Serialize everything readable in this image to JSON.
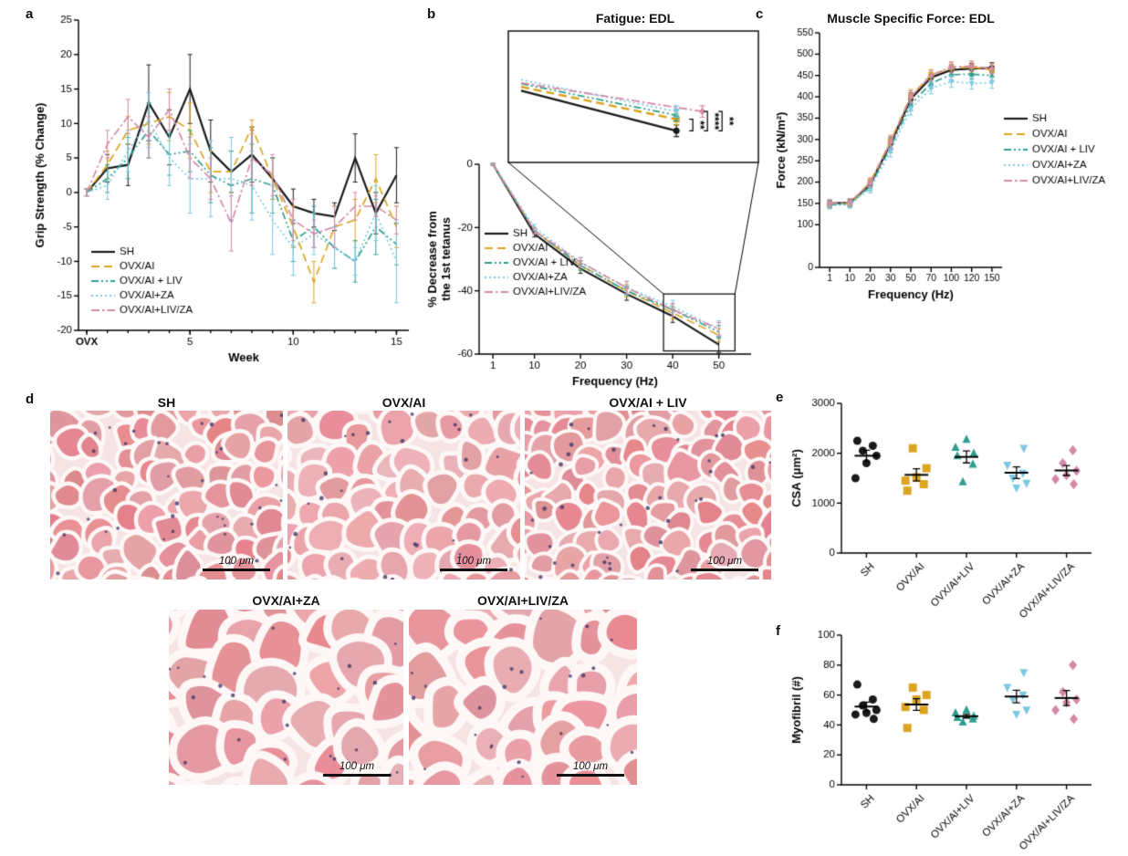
{
  "panel_labels": {
    "a": "a",
    "b": "b",
    "c": "c",
    "d": "d",
    "e": "e",
    "f": "f"
  },
  "groups": [
    {
      "name": "SH",
      "color": "#1a1a1a",
      "dash": "solid",
      "marker": "circle"
    },
    {
      "name": "OVX/AI",
      "color": "#dba520",
      "dash": "dashed",
      "marker": "square"
    },
    {
      "name": "OVX/AI + LIV",
      "color": "#2f9e8e",
      "dash": "dashdotdot",
      "marker": "triangle-up"
    },
    {
      "name": "OVX/AI+ZA",
      "color": "#7cc7e2",
      "dash": "dotted",
      "marker": "triangle-down"
    },
    {
      "name": "OVX/AI+LIV/ZA",
      "color": "#d489a6",
      "dash": "dashdot",
      "marker": "diamond"
    }
  ],
  "chart_data": [
    {
      "id": "a",
      "type": "line",
      "title": "",
      "xlabel": "Week",
      "ylabel": "Grip Strength (% Change)",
      "x": [
        0,
        1,
        2,
        3,
        4,
        5,
        6,
        7,
        8,
        9,
        10,
        11,
        12,
        13,
        14,
        15
      ],
      "xticks": [
        {
          "v": 0,
          "label": "OVX",
          "bold": true
        },
        {
          "v": 5,
          "label": "5"
        },
        {
          "v": 10,
          "label": "10"
        },
        {
          "v": 15,
          "label": "15"
        }
      ],
      "ylim": [
        -20,
        25
      ],
      "yticks": [
        -20,
        -15,
        -10,
        -5,
        0,
        5,
        10,
        15,
        20,
        25
      ],
      "series": [
        {
          "group": 0,
          "values": [
            0,
            3.5,
            4,
            13,
            8,
            15,
            6,
            3,
            5.5,
            2,
            -2,
            -3,
            -3.5,
            5,
            -3,
            2.5
          ],
          "err": [
            0.5,
            2,
            3,
            5.5,
            4,
            5,
            4.5,
            3,
            4,
            3,
            2.5,
            2,
            2,
            3.5,
            3,
            4
          ]
        },
        {
          "group": 1,
          "values": [
            0,
            4,
            9,
            10,
            11,
            9,
            3,
            3,
            9.5,
            2,
            -5,
            -13,
            -5,
            -4,
            2,
            -5
          ],
          "err": [
            0.5,
            2,
            2,
            3,
            3.5,
            4,
            3,
            3,
            1,
            3,
            3,
            3,
            3,
            3,
            3.5,
            3
          ]
        },
        {
          "group": 2,
          "values": [
            0,
            2,
            5,
            9,
            5.5,
            6,
            2.5,
            1,
            2,
            1,
            -7,
            -5,
            -8,
            -10,
            -5,
            -7.5
          ],
          "err": [
            0.5,
            2,
            3,
            4,
            3,
            3,
            4,
            5,
            5,
            4,
            3,
            3,
            3,
            3,
            4,
            3
          ]
        },
        {
          "group": 3,
          "values": [
            0,
            1,
            6,
            10.5,
            5,
            2,
            2,
            2,
            1,
            -4,
            -8,
            -6,
            -8,
            -10,
            -3,
            -10
          ],
          "err": [
            0.5,
            2,
            3,
            4,
            4,
            5,
            5.5,
            6,
            5,
            5,
            4,
            3,
            3,
            2,
            4,
            6
          ]
        },
        {
          "group": 4,
          "values": [
            0,
            7,
            11,
            8,
            12,
            5,
            2,
            -4.5,
            5,
            2.5,
            -4,
            -6,
            -5,
            -2,
            -2,
            -4
          ],
          "err": [
            0.5,
            2,
            2.5,
            3,
            3,
            3,
            3,
            4,
            4,
            3,
            3,
            2,
            3,
            2,
            1.5,
            2
          ]
        }
      ]
    },
    {
      "id": "b",
      "type": "line",
      "title": "Fatigue: EDL",
      "xlabel": "Frequency (Hz)",
      "ylabel": "% Decrease from the 1st tetanus",
      "x": [
        1,
        10,
        20,
        30,
        40,
        50
      ],
      "xticks": [
        1,
        10,
        20,
        30,
        40,
        50
      ],
      "ylim": [
        -60,
        0
      ],
      "yticks": [
        0,
        -20,
        -40,
        -60
      ],
      "series": [
        {
          "group": 0,
          "values": [
            0,
            -22,
            -33,
            -41,
            -48,
            -57
          ],
          "err": [
            0.3,
            1,
            1.5,
            2,
            2,
            2.5
          ]
        },
        {
          "group": 1,
          "values": [
            0,
            -21,
            -32,
            -40,
            -47,
            -54
          ],
          "err": [
            0.3,
            1,
            1.5,
            2,
            2,
            2
          ]
        },
        {
          "group": 2,
          "values": [
            0,
            -21,
            -32,
            -40,
            -46,
            -53
          ],
          "err": [
            0.3,
            1,
            1.5,
            1.5,
            2,
            2
          ]
        },
        {
          "group": 3,
          "values": [
            0,
            -20,
            -31,
            -39,
            -45,
            -52
          ],
          "err": [
            0.3,
            1,
            1.5,
            2,
            2,
            2.5
          ]
        },
        {
          "group": 4,
          "values": [
            0,
            -21,
            -31,
            -39,
            -46,
            -52
          ],
          "err": [
            0.3,
            1,
            1.5,
            2,
            2,
            2
          ]
        }
      ],
      "inset": {
        "xrange": [
          38,
          54.5
        ],
        "yrange": [
          -60,
          -34
        ],
        "sig": [
          "**",
          "****",
          "**"
        ]
      }
    },
    {
      "id": "c",
      "type": "line",
      "title": "Muscle Specific Force: EDL",
      "xlabel": "Frequency (Hz)",
      "ylabel": "Force (kN/m²)",
      "categorical": true,
      "x": [
        1,
        10,
        20,
        30,
        50,
        70,
        100,
        120,
        150
      ],
      "ylim": [
        0,
        550
      ],
      "yticks": [
        0,
        100,
        150,
        200,
        250,
        300,
        350,
        400,
        450,
        500,
        550
      ],
      "series": [
        {
          "group": 0,
          "values": [
            150,
            152,
            195,
            290,
            395,
            445,
            463,
            466,
            468
          ],
          "err": [
            8,
            8,
            10,
            14,
            14,
            12,
            12,
            12,
            12
          ]
        },
        {
          "group": 1,
          "values": [
            148,
            150,
            200,
            296,
            402,
            452,
            468,
            470,
            463
          ],
          "err": [
            8,
            8,
            10,
            14,
            15,
            12,
            12,
            12,
            14
          ]
        },
        {
          "group": 2,
          "values": [
            147,
            149,
            190,
            282,
            382,
            432,
            452,
            453,
            450
          ],
          "err": [
            8,
            8,
            10,
            13,
            14,
            12,
            12,
            12,
            12
          ]
        },
        {
          "group": 3,
          "values": [
            145,
            147,
            185,
            272,
            372,
            420,
            436,
            431,
            433
          ],
          "err": [
            8,
            8,
            10,
            13,
            15,
            13,
            14,
            13,
            13
          ]
        },
        {
          "group": 4,
          "values": [
            150,
            153,
            198,
            294,
            400,
            450,
            470,
            472,
            466
          ],
          "err": [
            8,
            8,
            10,
            14,
            14,
            12,
            12,
            12,
            12
          ]
        }
      ]
    },
    {
      "id": "e",
      "type": "scatter",
      "title": "",
      "ylabel": "CSA (μm²)",
      "categories": [
        "SH",
        "OVX/AI",
        "OVX/AI+LIV",
        "OVX/AI+ZA",
        "OVX/AI+LIV/ZA"
      ],
      "ylim": [
        0,
        3000
      ],
      "yticks": [
        0,
        1000,
        2000,
        3000
      ],
      "series": [
        {
          "group": 0,
          "values": [
            2250,
            2150,
            2050,
            1950,
            1800,
            1500
          ]
        },
        {
          "group": 1,
          "values": [
            2100,
            1700,
            1520,
            1450,
            1380,
            1250
          ]
        },
        {
          "group": 2,
          "values": [
            2280,
            2120,
            2000,
            1950,
            1780,
            1430
          ]
        },
        {
          "group": 3,
          "values": [
            2100,
            1760,
            1600,
            1500,
            1400,
            1300
          ]
        },
        {
          "group": 4,
          "values": [
            2060,
            1800,
            1650,
            1560,
            1480,
            1380
          ]
        }
      ]
    },
    {
      "id": "f",
      "type": "scatter",
      "title": "",
      "ylabel": "Myofibril (#)",
      "categories": [
        "SH",
        "OVX/AI",
        "OVX/AI+LIV",
        "OVX/AI+ZA",
        "OVX/AI+LIV/ZA"
      ],
      "ylim": [
        0,
        100
      ],
      "yticks": [
        0,
        20,
        40,
        60,
        80,
        100
      ],
      "series": [
        {
          "group": 0,
          "values": [
            67,
            57,
            53,
            50,
            48,
            47,
            44
          ]
        },
        {
          "group": 1,
          "values": [
            65,
            60,
            57,
            52,
            50,
            38
          ]
        },
        {
          "group": 2,
          "values": [
            50,
            48,
            46,
            45,
            44,
            42
          ]
        },
        {
          "group": 3,
          "values": [
            75,
            65,
            60,
            57,
            50,
            47
          ]
        },
        {
          "group": 4,
          "values": [
            80,
            62,
            57,
            55,
            50,
            44
          ]
        }
      ]
    }
  ],
  "histology": {
    "images": [
      {
        "label": "SH",
        "scale": "100 μm"
      },
      {
        "label": "OVX/AI",
        "scale": "100 μm"
      },
      {
        "label": "OVX/AI + LIV",
        "scale": "100 μm"
      },
      {
        "label": "OVX/AI+ZA",
        "scale": "100 μm"
      },
      {
        "label": "OVX/AI+LIV/ZA",
        "scale": "100 μm"
      }
    ]
  }
}
